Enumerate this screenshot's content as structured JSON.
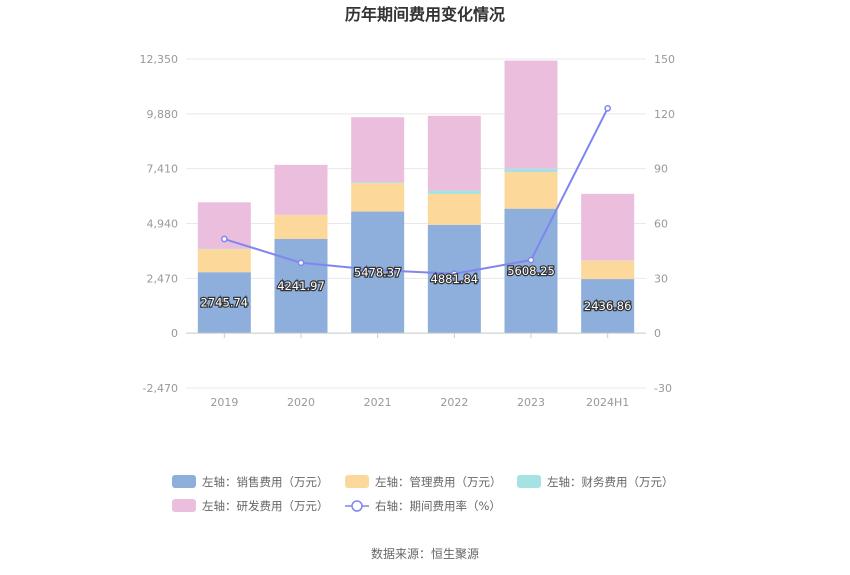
{
  "chart_data": {
    "type": "bar",
    "stacked": true,
    "title": "历年期间费用变化情况",
    "categories": [
      "2019",
      "2020",
      "2021",
      "2022",
      "2023",
      "2024H1"
    ],
    "left_axis": {
      "ticks": [
        "12,350",
        "9,880",
        "7,410",
        "4,940",
        "2,470",
        "0",
        "-2,470"
      ],
      "tick_values": [
        12350,
        9880,
        7410,
        4940,
        2470,
        0,
        -2470
      ],
      "ylim": [
        -2470,
        12350
      ]
    },
    "right_axis": {
      "ticks": [
        "150",
        "120",
        "90",
        "60",
        "30",
        "0",
        "-30"
      ],
      "tick_values": [
        150,
        120,
        90,
        60,
        30,
        0,
        -30
      ],
      "ylim": [
        -30,
        150
      ]
    },
    "series": [
      {
        "name": "左轴：销售费用（万元）",
        "color": "#8eaedc",
        "legend_marker": "bar",
        "values": [
          2745.74,
          4241.97,
          5478.37,
          4881.84,
          5608.25,
          2436.86
        ]
      },
      {
        "name": "左轴：管理费用（万元）",
        "color": "#fdd89b",
        "legend_marker": "bar",
        "values": [
          1030,
          1080,
          1280,
          1390,
          1650,
          830
        ]
      },
      {
        "name": "左轴：财务费用（万元）",
        "color": "#a6e2e3",
        "legend_marker": "bar",
        "values": [
          20,
          10,
          40,
          150,
          150,
          10
        ]
      },
      {
        "name": "左轴：研发费用（万元）",
        "color": "#ecbedd",
        "legend_marker": "bar",
        "values": [
          2100,
          2250,
          2930,
          3370,
          4870,
          3000
        ]
      },
      {
        "name": "右轴：期间费用率（%）",
        "color": "#7f86ef",
        "legend_marker": "line",
        "axis": "right",
        "values": [
          51.5,
          38.5,
          34.5,
          32.5,
          40,
          123
        ]
      }
    ],
    "data_labels": [
      "2745.74",
      "4241.97",
      "5478.37",
      "4881.84",
      "5608.25",
      "2436.86"
    ],
    "grid": true,
    "legend_position": "bottom",
    "source": "数据来源：恒生聚源"
  }
}
